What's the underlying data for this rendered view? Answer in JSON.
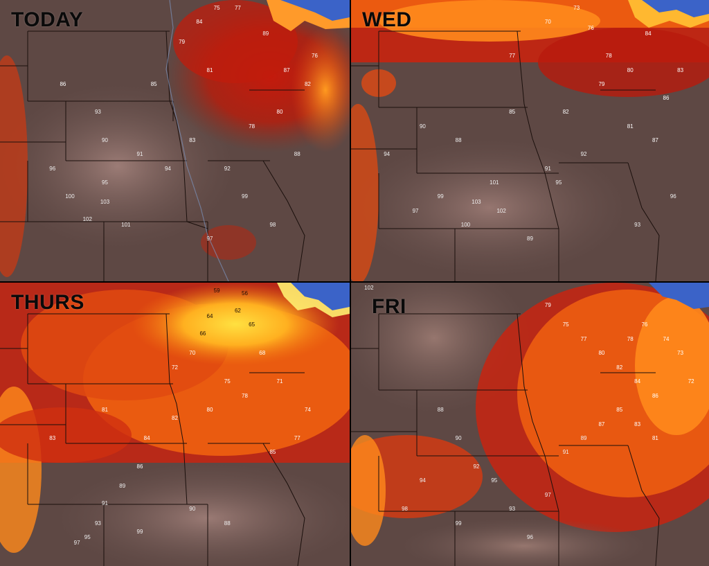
{
  "panels": [
    {
      "title": "TODAY",
      "temps": [
        "75",
        "77",
        "84",
        "86",
        "93",
        "95",
        "100",
        "103",
        "102",
        "101",
        "99",
        "97",
        "94",
        "91",
        "89",
        "87",
        "82",
        "80",
        "78",
        "76",
        "81",
        "83",
        "85",
        "90",
        "96",
        "98",
        "92",
        "88",
        "79"
      ]
    },
    {
      "title": "WED",
      "temps": [
        "73",
        "70",
        "76",
        "78",
        "80",
        "84",
        "86",
        "91",
        "95",
        "101",
        "103",
        "102",
        "100",
        "99",
        "97",
        "94",
        "90",
        "88",
        "85",
        "82",
        "79",
        "81",
        "87",
        "92",
        "96",
        "93",
        "89",
        "83",
        "77"
      ]
    },
    {
      "title": "THURS",
      "temps": [
        "59",
        "56",
        "62",
        "64",
        "66",
        "70",
        "72",
        "75",
        "78",
        "80",
        "82",
        "84",
        "86",
        "89",
        "91",
        "93",
        "95",
        "97",
        "99",
        "90",
        "88",
        "85",
        "77",
        "74",
        "71",
        "68",
        "65",
        "81",
        "83"
      ]
    },
    {
      "title": "FRI",
      "temps": [
        "102",
        "79",
        "75",
        "77",
        "80",
        "82",
        "84",
        "86",
        "88",
        "90",
        "92",
        "95",
        "97",
        "91",
        "89",
        "87",
        "85",
        "83",
        "81",
        "78",
        "76",
        "74",
        "73",
        "99",
        "93",
        "96",
        "94",
        "98",
        "72"
      ]
    }
  ],
  "colors": {
    "background_cool": "#6b5450",
    "background_mid": "#8a6a64",
    "hot_red": "#c21a0a",
    "hot_orange": "#f05a10",
    "warm_orange": "#ff8a1c",
    "yellow": "#ffd23a",
    "lake_blue": "#3b63c8",
    "border": "#1a0f0c"
  }
}
